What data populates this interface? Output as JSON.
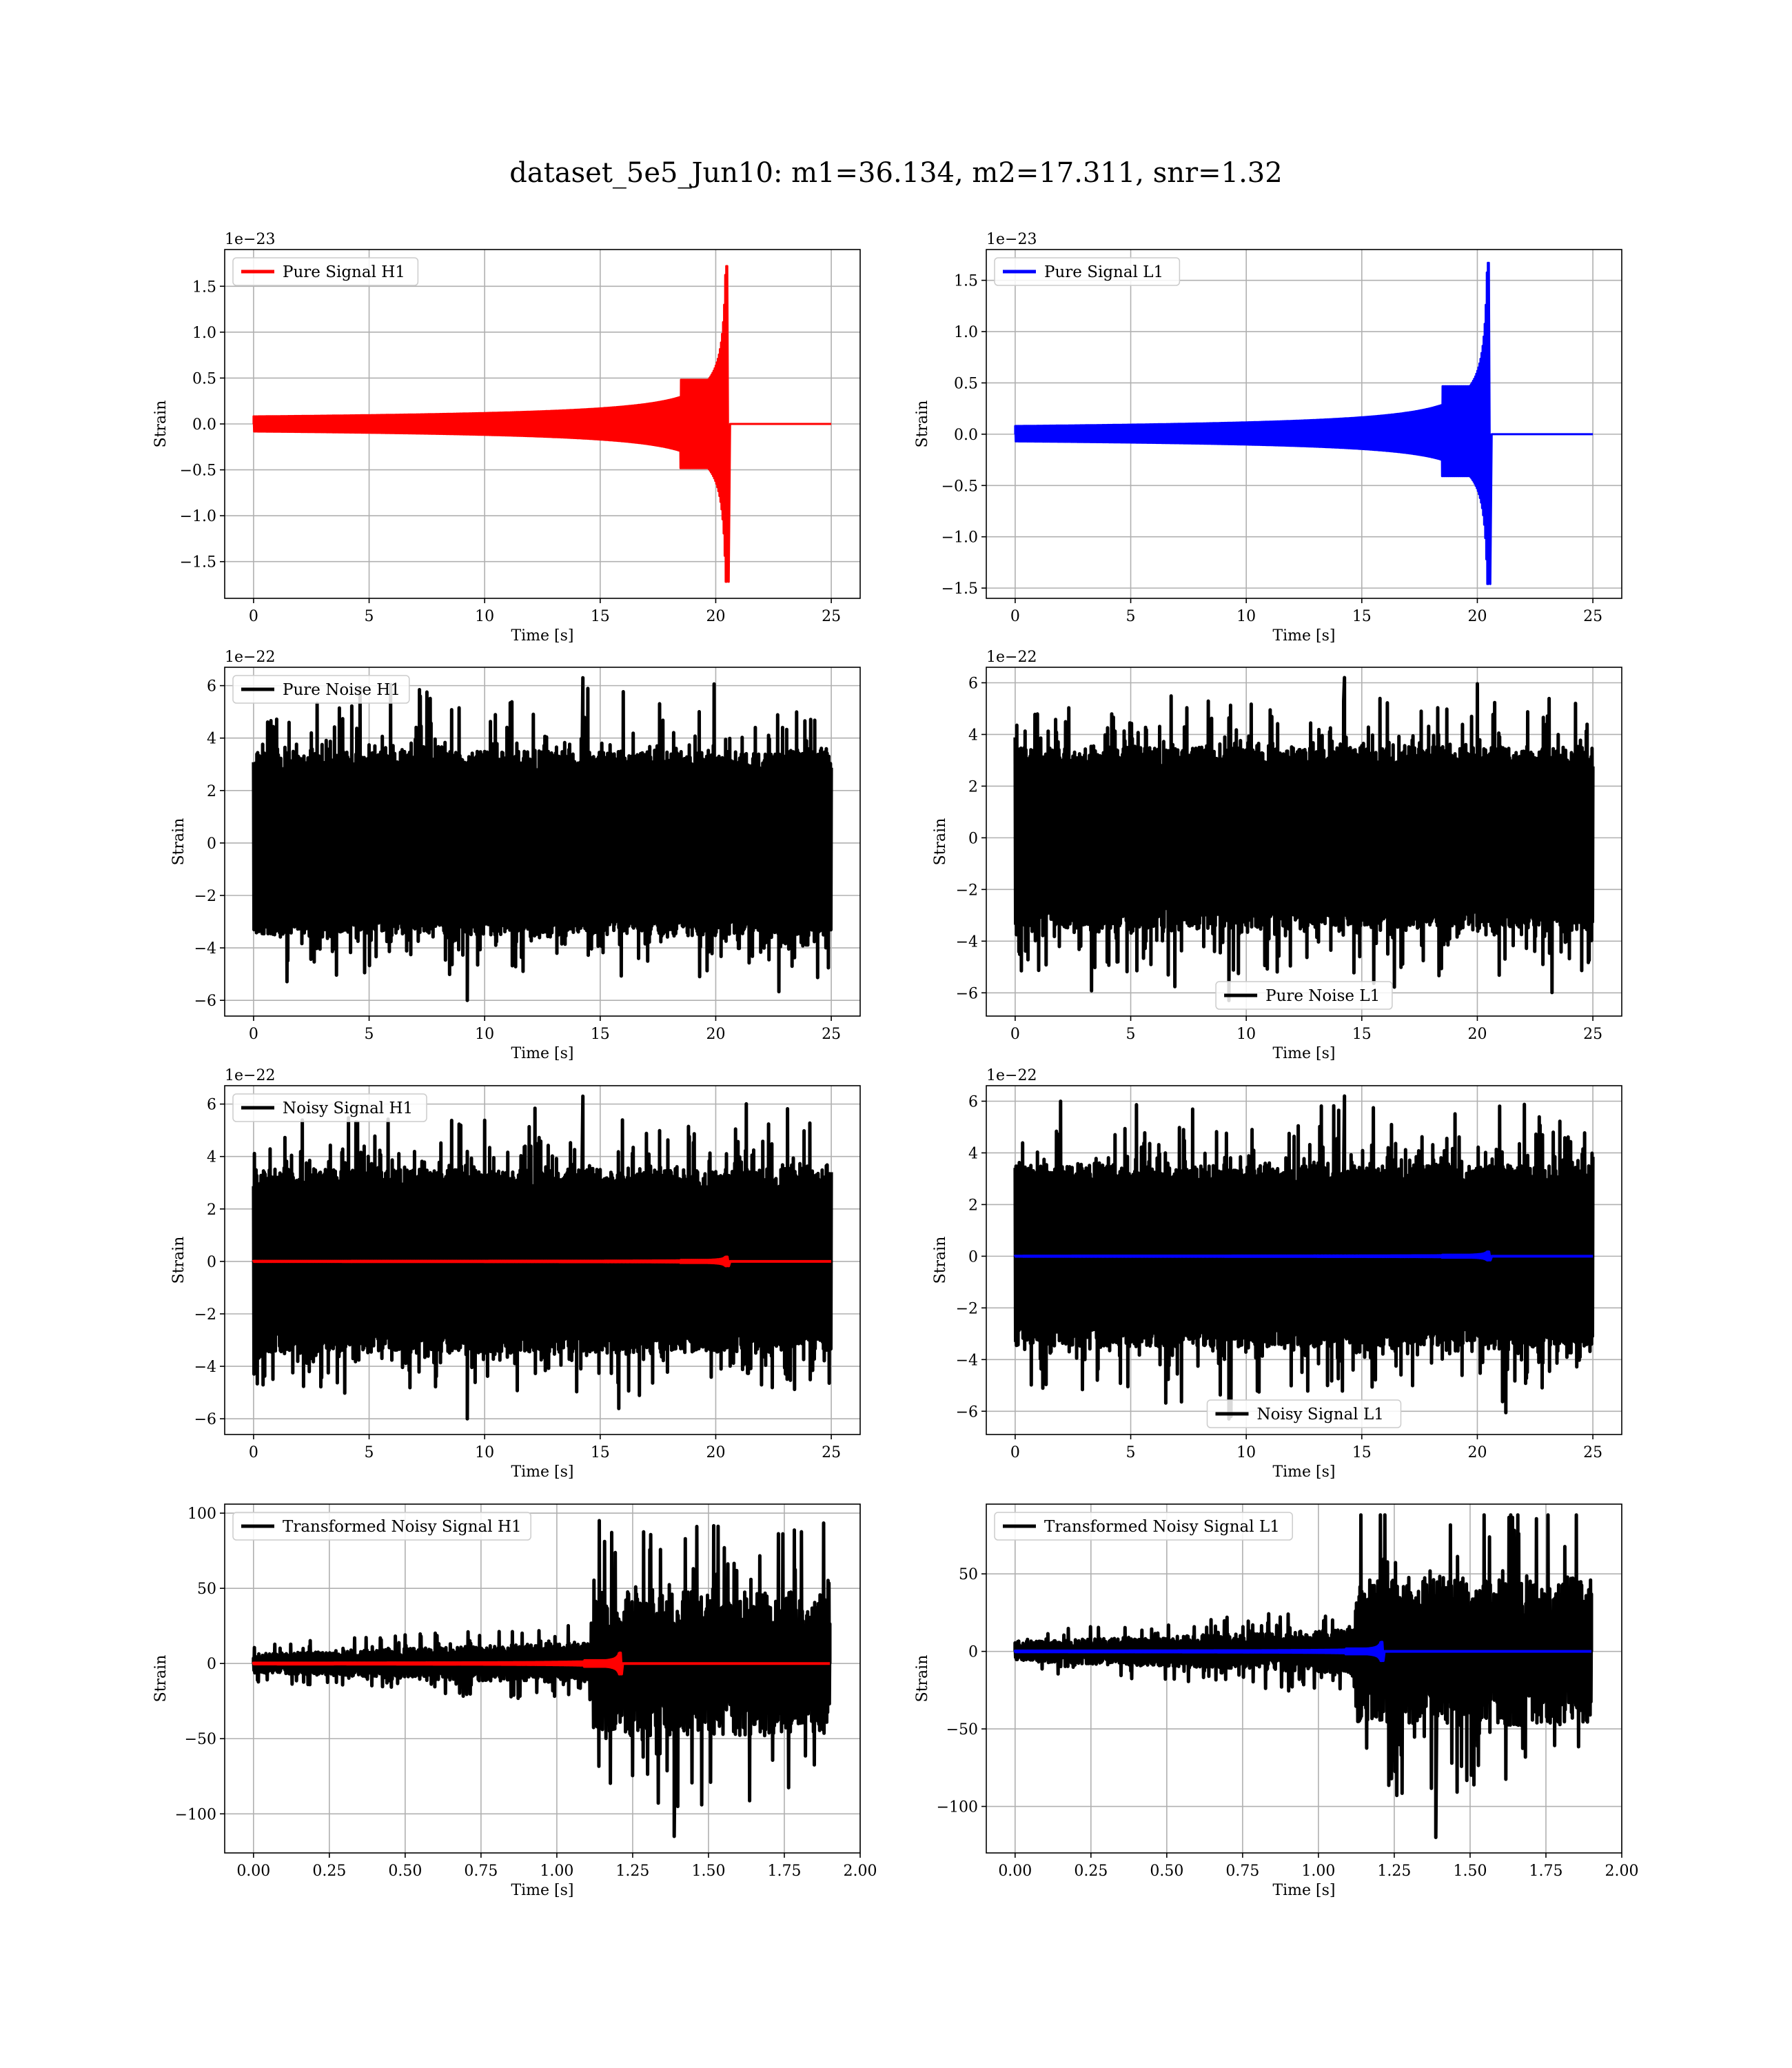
{
  "figure": {
    "title": "dataset_5e5_Jun10: m1=36.134, m2=17.311, snr=1.32",
    "colors": {
      "h1": "#ff0000",
      "l1": "#0000ff",
      "noise": "#000000",
      "grid": "#b0b0b0"
    }
  },
  "chart_data": [
    {
      "type": "line",
      "panel": "pure-signal-h1",
      "xlabel": "Time [s]",
      "ylabel": "Strain",
      "offset_text": "1e−23",
      "xlim": [
        -1.25,
        26.25
      ],
      "ylim": [
        -1.9,
        1.9
      ],
      "xticks": [
        0,
        5,
        10,
        15,
        20,
        25
      ],
      "xtick_labels": [
        "0",
        "5",
        "10",
        "15",
        "20",
        "25"
      ],
      "yticks": [
        -1.5,
        -1.0,
        -0.5,
        0.0,
        0.5,
        1.0,
        1.5
      ],
      "ytick_labels": [
        "−1.5",
        "−1.0",
        "−0.5",
        "0.0",
        "0.5",
        "1.0",
        "1.5"
      ],
      "grid": true,
      "legend_position": "upper-left",
      "series": [
        {
          "name": "Pure Signal H1",
          "color": "#ff0000",
          "kind": "chirp",
          "x_range": [
            0,
            25
          ],
          "merger_time": 20.5,
          "peak_amplitude": 1.72,
          "trough_amplitude": -1.72
        }
      ]
    },
    {
      "type": "line",
      "panel": "pure-signal-l1",
      "xlabel": "Time [s]",
      "ylabel": "Strain",
      "offset_text": "1e−23",
      "xlim": [
        -1.25,
        26.25
      ],
      "ylim": [
        -1.6,
        1.8
      ],
      "xticks": [
        0,
        5,
        10,
        15,
        20,
        25
      ],
      "xtick_labels": [
        "0",
        "5",
        "10",
        "15",
        "20",
        "25"
      ],
      "yticks": [
        -1.5,
        -1.0,
        -0.5,
        0.0,
        0.5,
        1.0,
        1.5
      ],
      "ytick_labels": [
        "−1.5",
        "−1.0",
        "−0.5",
        "0.0",
        "0.5",
        "1.0",
        "1.5"
      ],
      "grid": true,
      "legend_position": "upper-left",
      "series": [
        {
          "name": "Pure Signal L1",
          "color": "#0000ff",
          "kind": "chirp",
          "x_range": [
            0,
            25
          ],
          "merger_time": 20.5,
          "peak_amplitude": 1.67,
          "trough_amplitude": -1.46
        }
      ]
    },
    {
      "type": "line",
      "panel": "pure-noise-h1",
      "xlabel": "Time [s]",
      "ylabel": "Strain",
      "offset_text": "1e−22",
      "xlim": [
        -1.25,
        26.25
      ],
      "ylim": [
        -6.6,
        6.7
      ],
      "xticks": [
        0,
        5,
        10,
        15,
        20,
        25
      ],
      "xtick_labels": [
        "0",
        "5",
        "10",
        "15",
        "20",
        "25"
      ],
      "yticks": [
        -6,
        -4,
        -2,
        0,
        2,
        4,
        6
      ],
      "ytick_labels": [
        "−6",
        "−4",
        "−2",
        "0",
        "2",
        "4",
        "6"
      ],
      "grid": true,
      "legend_position": "upper-left",
      "series": [
        {
          "name": "Pure Noise H1",
          "color": "#000000",
          "kind": "noise",
          "x_range": [
            0,
            25
          ],
          "core_amplitude": 3.5,
          "max": 6.3,
          "min": -6.0
        }
      ]
    },
    {
      "type": "line",
      "panel": "pure-noise-l1",
      "xlabel": "Time [s]",
      "ylabel": "Strain",
      "offset_text": "1e−22",
      "xlim": [
        -1.25,
        26.25
      ],
      "ylim": [
        -6.9,
        6.6
      ],
      "xticks": [
        0,
        5,
        10,
        15,
        20,
        25
      ],
      "xtick_labels": [
        "0",
        "5",
        "10",
        "15",
        "20",
        "25"
      ],
      "yticks": [
        -6,
        -4,
        -2,
        0,
        2,
        4,
        6
      ],
      "ytick_labels": [
        "−6",
        "−4",
        "−2",
        "0",
        "2",
        "4",
        "6"
      ],
      "grid": true,
      "legend_position": "lower-center",
      "series": [
        {
          "name": "Pure Noise L1",
          "color": "#000000",
          "kind": "noise",
          "x_range": [
            0,
            25
          ],
          "core_amplitude": 3.5,
          "max": 6.2,
          "min": -6.3
        }
      ]
    },
    {
      "type": "line",
      "panel": "noisy-signal-h1",
      "xlabel": "Time [s]",
      "ylabel": "Strain",
      "offset_text": "1e−22",
      "xlim": [
        -1.25,
        26.25
      ],
      "ylim": [
        -6.6,
        6.7
      ],
      "xticks": [
        0,
        5,
        10,
        15,
        20,
        25
      ],
      "xtick_labels": [
        "0",
        "5",
        "10",
        "15",
        "20",
        "25"
      ],
      "yticks": [
        -6,
        -4,
        -2,
        0,
        2,
        4,
        6
      ],
      "ytick_labels": [
        "−6",
        "−4",
        "−2",
        "0",
        "2",
        "4",
        "6"
      ],
      "grid": true,
      "legend_position": "upper-left",
      "series": [
        {
          "name": "Noisy Signal H1",
          "color": "#000000",
          "kind": "noise",
          "x_range": [
            0,
            25
          ],
          "core_amplitude": 3.5,
          "max": 6.3,
          "min": -6.0
        },
        {
          "name": "",
          "color": "#ff0000",
          "kind": "chirp",
          "x_range": [
            0,
            25
          ],
          "merger_time": 20.5,
          "peak_amplitude": 0.17,
          "trough_amplitude": -0.17
        }
      ]
    },
    {
      "type": "line",
      "panel": "noisy-signal-l1",
      "xlabel": "Time [s]",
      "ylabel": "Strain",
      "offset_text": "1e−22",
      "xlim": [
        -1.25,
        26.25
      ],
      "ylim": [
        -6.9,
        6.6
      ],
      "xticks": [
        0,
        5,
        10,
        15,
        20,
        25
      ],
      "xtick_labels": [
        "0",
        "5",
        "10",
        "15",
        "20",
        "25"
      ],
      "yticks": [
        -6,
        -4,
        -2,
        0,
        2,
        4,
        6
      ],
      "ytick_labels": [
        "−6",
        "−4",
        "−2",
        "0",
        "2",
        "4",
        "6"
      ],
      "grid": true,
      "legend_position": "lower-center",
      "series": [
        {
          "name": "Noisy Signal L1",
          "color": "#000000",
          "kind": "noise",
          "x_range": [
            0,
            25
          ],
          "core_amplitude": 3.5,
          "max": 6.2,
          "min": -6.3
        },
        {
          "name": "",
          "color": "#0000ff",
          "kind": "chirp",
          "x_range": [
            0,
            25
          ],
          "merger_time": 20.5,
          "peak_amplitude": 0.17,
          "trough_amplitude": -0.15
        }
      ]
    },
    {
      "type": "line",
      "panel": "transformed-noisy-signal-h1",
      "xlabel": "Time [s]",
      "ylabel": "Strain",
      "offset_text": "",
      "xlim": [
        -0.095,
        2.0
      ],
      "ylim": [
        -126,
        106
      ],
      "xticks": [
        0,
        0.25,
        0.5,
        0.75,
        1.0,
        1.25,
        1.5,
        1.75,
        2.0
      ],
      "xtick_labels": [
        "0.00",
        "0.25",
        "0.50",
        "0.75",
        "1.00",
        "1.25",
        "1.50",
        "1.75",
        "2.00"
      ],
      "yticks": [
        -100,
        -50,
        0,
        50,
        100
      ],
      "ytick_labels": [
        "−100",
        "−50",
        "0",
        "50",
        "100"
      ],
      "grid": true,
      "legend_position": "upper-left",
      "series": [
        {
          "name": "Transformed Noisy Signal H1",
          "color": "#000000",
          "kind": "whitened",
          "x_range": [
            0,
            1.9
          ],
          "step_time": 1.12,
          "pre_amplitude": 9,
          "post_amplitude": 48,
          "max": 95,
          "min": -115
        },
        {
          "name": "",
          "color": "#ff0000",
          "kind": "chirp",
          "x_range": [
            0,
            1.9
          ],
          "merger_time": 1.21,
          "peak_amplitude": 7,
          "trough_amplitude": -7
        }
      ]
    },
    {
      "type": "line",
      "panel": "transformed-noisy-signal-l1",
      "xlabel": "Time [s]",
      "ylabel": "Strain",
      "offset_text": "",
      "xlim": [
        -0.095,
        2.0
      ],
      "ylim": [
        -130,
        95
      ],
      "xticks": [
        0,
        0.25,
        0.5,
        0.75,
        1.0,
        1.25,
        1.5,
        1.75,
        2.0
      ],
      "xtick_labels": [
        "0.00",
        "0.25",
        "0.50",
        "0.75",
        "1.00",
        "1.25",
        "1.50",
        "1.75",
        "2.00"
      ],
      "yticks": [
        -100,
        -50,
        0,
        50
      ],
      "ytick_labels": [
        "−100",
        "−50",
        "0",
        "50"
      ],
      "grid": true,
      "legend_position": "upper-left",
      "series": [
        {
          "name": "Transformed Noisy Signal L1",
          "color": "#000000",
          "kind": "whitened",
          "x_range": [
            0,
            1.9
          ],
          "step_time": 1.12,
          "pre_amplitude": 9,
          "post_amplitude": 48,
          "max": 88,
          "min": -120
        },
        {
          "name": "",
          "color": "#0000ff",
          "kind": "chirp",
          "x_range": [
            0,
            1.9
          ],
          "merger_time": 1.21,
          "peak_amplitude": 6,
          "trough_amplitude": -6
        }
      ]
    }
  ]
}
